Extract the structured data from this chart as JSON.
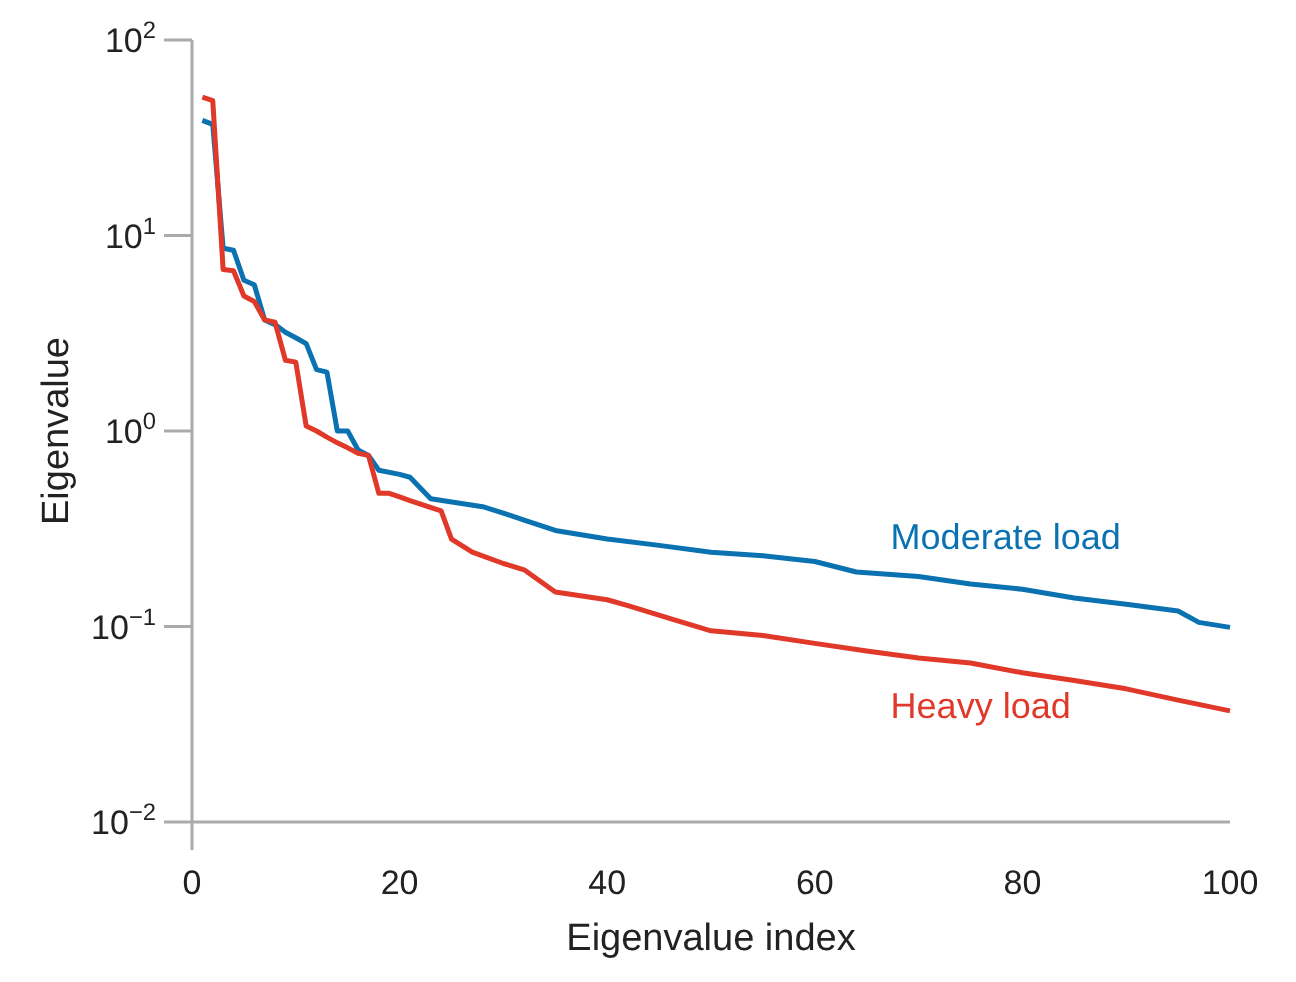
{
  "chart_data": {
    "type": "line",
    "xlabel": "Eigenvalue index",
    "ylabel": "Eigenvalue",
    "log": "y",
    "xlim": [
      0,
      100
    ],
    "xticks": [
      0,
      20,
      40,
      60,
      80,
      100
    ],
    "ylim": [
      0.01,
      100
    ],
    "yticks": [
      {
        "value": 0.01,
        "label": "10$^{−2}$"
      },
      {
        "value": 0.1,
        "label": "10$^{−1}$"
      },
      {
        "value": 1,
        "label": "10$^{0}$"
      },
      {
        "value": 10,
        "label": "10$^{1}$"
      },
      {
        "value": 100,
        "label": "10$^{2}$"
      }
    ],
    "grid": false,
    "line_style": "solid",
    "series": [
      {
        "name": "Moderate load",
        "color": "#0a72b0",
        "x": [
          1,
          2,
          3,
          4,
          5,
          6,
          7,
          8,
          9,
          10,
          11,
          12,
          13,
          14,
          15,
          16,
          17,
          18,
          20,
          21,
          23,
          28,
          30,
          32,
          35,
          40,
          45,
          50,
          55,
          60,
          64,
          70,
          75,
          80,
          85,
          90,
          95,
          97,
          100
        ],
        "values": [
          38.8,
          37,
          8.6,
          8.4,
          5.9,
          5.6,
          3.7,
          3.5,
          3.2,
          3.0,
          2.8,
          2.06,
          2.0,
          1.0,
          1.0,
          0.8,
          0.75,
          0.63,
          0.6,
          0.58,
          0.45,
          0.41,
          0.38,
          0.35,
          0.31,
          0.28,
          0.26,
          0.24,
          0.23,
          0.215,
          0.19,
          0.18,
          0.165,
          0.155,
          0.14,
          0.13,
          0.12,
          0.105,
          0.099
        ]
      },
      {
        "name": "Heavy load",
        "color": "#e0392a",
        "x": [
          1,
          2,
          3,
          4,
          5,
          6,
          7,
          8,
          9,
          10,
          11,
          12,
          13,
          14,
          15,
          16,
          17,
          18,
          19,
          20,
          21,
          24,
          25,
          27,
          30,
          32,
          35,
          40,
          42,
          46,
          50,
          55,
          60,
          65,
          70,
          75,
          80,
          85,
          90,
          95,
          100
        ],
        "values": [
          51,
          49,
          6.7,
          6.6,
          4.9,
          4.6,
          3.7,
          3.6,
          2.3,
          2.25,
          1.06,
          1.0,
          0.93,
          0.87,
          0.82,
          0.77,
          0.75,
          0.48,
          0.48,
          0.46,
          0.44,
          0.39,
          0.28,
          0.24,
          0.21,
          0.195,
          0.15,
          0.137,
          0.128,
          0.11,
          0.095,
          0.09,
          0.082,
          0.075,
          0.069,
          0.065,
          0.058,
          0.053,
          0.048,
          0.042,
          0.037
        ]
      }
    ]
  }
}
